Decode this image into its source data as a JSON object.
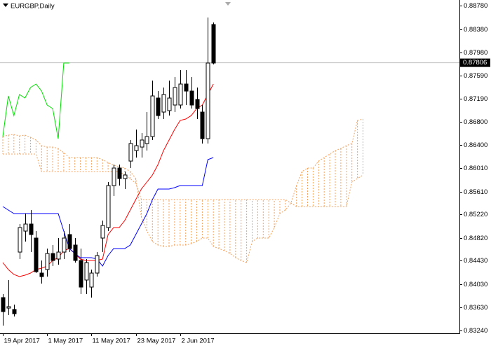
{
  "chart_data": {
    "type": "candlestick",
    "title": "EURGBP,Daily",
    "categories": [
      "19 Apr 2017",
      null,
      null,
      null,
      null,
      null,
      null,
      null,
      "1 May 2017",
      null,
      null,
      null,
      null,
      null,
      null,
      null,
      "11 May 2017",
      null,
      null,
      null,
      null,
      null,
      null,
      null,
      "23 May 2017",
      null,
      null,
      null,
      null,
      null,
      null,
      null,
      "2 Jun 2017",
      null,
      null,
      null,
      null,
      null,
      null,
      null,
      null,
      null,
      null,
      null,
      null,
      null,
      null,
      null,
      null,
      null,
      null,
      null,
      null,
      null,
      null,
      null,
      null,
      null,
      null,
      null,
      null,
      null,
      null,
      null,
      null,
      null
    ],
    "open": [
      0.83801,
      0.83622,
      0.83598,
      0.84577,
      0.84935,
      0.85055,
      0.84816,
      0.84219,
      0.84279,
      0.84553,
      0.84458,
      0.84577,
      0.84876,
      0.84697,
      0.84434,
      0.841,
      0.8398,
      0.84219,
      0.84816,
      0.84995,
      0.85711,
      0.8601,
      0.85831,
      0.86129,
      0.86308,
      0.86368,
      0.86428,
      0.86547,
      0.87204,
      0.86965,
      0.86989,
      0.87085,
      0.87085,
      0.87443,
      0.87323,
      0.8718,
      0.86965,
      0.86511,
      0.88458,
      null,
      null,
      null,
      null,
      null,
      null,
      null,
      null,
      null,
      null,
      null,
      null,
      null,
      null,
      null,
      null,
      null,
      null,
      null,
      null,
      null,
      null,
      null,
      null,
      null,
      null,
      null
    ],
    "high": [
      0.83861,
      0.841,
      0.83682,
      0.85055,
      0.85234,
      0.85294,
      0.84935,
      0.84434,
      0.84637,
      0.84697,
      0.84816,
      0.84935,
      0.85055,
      0.84816,
      0.84637,
      0.84458,
      0.84279,
      0.84577,
      0.85114,
      0.85771,
      0.8607,
      0.8607,
      0.8595,
      0.86488,
      0.86667,
      0.86607,
      0.86965,
      0.87502,
      0.87323,
      0.87383,
      0.87502,
      0.87562,
      0.87682,
      0.87682,
      0.87562,
      0.87383,
      0.87085,
      0.88577,
      0.88493,
      null,
      null,
      null,
      null,
      null,
      null,
      null,
      null,
      null,
      null,
      null,
      null,
      null,
      null,
      null,
      null,
      null,
      null,
      null,
      null,
      null,
      null,
      null,
      null,
      null,
      null,
      null
    ],
    "low": [
      0.83323,
      0.83503,
      0.83479,
      0.84458,
      0.84756,
      0.84577,
      0.84219,
      0.8404,
      0.84159,
      0.84338,
      0.84362,
      0.84458,
      0.84577,
      0.84398,
      0.83861,
      0.83861,
      0.83801,
      0.84159,
      0.84577,
      0.84935,
      0.85532,
      0.85711,
      0.85652,
      0.8601,
      0.86189,
      0.86189,
      0.86308,
      0.86488,
      0.86846,
      0.86846,
      0.86905,
      0.86965,
      0.87025,
      0.87085,
      0.87025,
      0.86846,
      0.86428,
      0.86428,
      0.87777,
      null,
      null,
      null,
      null,
      null,
      null,
      null,
      null,
      null,
      null,
      null,
      null,
      null,
      null,
      null,
      null,
      null,
      null,
      null,
      null,
      null,
      null,
      null,
      null,
      null,
      null,
      null
    ],
    "close": [
      0.83562,
      0.83646,
      0.83526,
      0.84995,
      0.85055,
      0.84876,
      0.84243,
      0.84159,
      0.84553,
      0.84434,
      0.84577,
      0.84816,
      0.84637,
      0.84434,
      0.8398,
      0.84398,
      0.84219,
      0.84517,
      0.85031,
      0.85711,
      0.8601,
      0.85831,
      0.85891,
      0.86428,
      0.86392,
      0.86488,
      0.86547,
      0.8724,
      0.86905,
      0.87264,
      0.87204,
      0.87383,
      0.87443,
      0.87323,
      0.87085,
      0.87025,
      0.86511,
      0.87801,
      0.87801,
      null,
      null,
      null,
      null,
      null,
      null,
      null,
      null,
      null,
      null,
      null,
      null,
      null,
      null,
      null,
      null,
      null,
      null,
      null,
      null,
      null,
      null,
      null,
      null,
      null,
      null,
      null
    ],
    "series": [
      {
        "color": "#ff0000",
        "values": [
          0.84398,
          0.84279,
          0.84195,
          0.84159,
          0.84183,
          0.84219,
          0.84279,
          0.84302,
          0.84338,
          0.84434,
          0.84482,
          0.84601,
          0.84637,
          0.84553,
          0.84458,
          0.84434,
          0.84434,
          0.84434,
          0.84458,
          0.84876,
          0.84995,
          0.84995,
          0.85114,
          0.85294,
          0.85473,
          0.85652,
          0.85771,
          0.85891,
          0.8607,
          0.86308,
          0.86488,
          0.86667,
          0.86822,
          0.86846,
          0.86905,
          0.87025,
          0.87085,
          0.87264,
          0.87443,
          null,
          null,
          null,
          null,
          null,
          null,
          null,
          null,
          null,
          null,
          null,
          null,
          null,
          null,
          null,
          null,
          null,
          null,
          null,
          null,
          null,
          null,
          null,
          null,
          null,
          null,
          null
        ]
      },
      {
        "color": "#0000ff",
        "values": [
          0.85353,
          0.85294,
          0.85234,
          0.85234,
          0.85234,
          0.85234,
          0.85234,
          0.85234,
          0.85234,
          0.85234,
          0.85234,
          0.84935,
          0.84637,
          0.84553,
          0.84482,
          0.84482,
          0.84482,
          0.84458,
          0.84338,
          0.84517,
          0.84637,
          0.84637,
          0.84637,
          0.84697,
          0.84876,
          0.85055,
          0.85234,
          0.85473,
          0.85652,
          0.85652,
          0.85652,
          0.85676,
          0.85711,
          0.85711,
          0.85711,
          0.85711,
          0.85711,
          0.86153,
          0.86189,
          null,
          null,
          null,
          null,
          null,
          null,
          null,
          null,
          null,
          null,
          null,
          null,
          null,
          null,
          null,
          null,
          null,
          null,
          null,
          null,
          null,
          null,
          null,
          null,
          null,
          null,
          null
        ]
      },
      {
        "color": "#00e000",
        "values": [
          0.86547,
          0.8724,
          0.86905,
          0.87264,
          0.87204,
          0.87383,
          0.87443,
          0.87323,
          0.87085,
          0.87025,
          0.86511,
          0.87801,
          0.87801,
          null,
          null,
          null,
          null,
          null,
          null,
          null,
          null,
          null,
          null,
          null,
          null,
          null,
          null,
          null,
          null,
          null,
          null,
          null,
          null,
          null,
          null,
          null,
          null,
          null,
          null,
          null,
          null,
          null,
          null,
          null,
          null,
          null,
          null,
          null,
          null,
          null,
          null,
          null,
          null,
          null,
          null,
          null,
          null,
          null,
          null,
          null,
          null,
          null,
          null,
          null,
          null,
          null
        ]
      }
    ],
    "cloud": {
      "color": "#f4a460",
      "span_a": [
        0.86547,
        0.86571,
        0.86583,
        0.86559,
        0.86571,
        0.86535,
        0.86488,
        0.86392,
        0.86368,
        0.86368,
        0.86344,
        0.86273,
        0.86189,
        0.86189,
        0.86189,
        0.86189,
        0.86189,
        0.86189,
        0.86153,
        0.86105,
        0.86058,
        0.86034,
        0.8601,
        0.8595,
        0.85831,
        0.85174,
        0.84935,
        0.84756,
        0.84697,
        0.84673,
        0.84673,
        0.84697,
        0.84697,
        0.84697,
        0.8472,
        0.84756,
        0.84816,
        0.84816,
        0.84673,
        0.84637,
        0.84601,
        0.84553,
        0.84482,
        0.84434,
        0.84398,
        0.84756,
        0.84816,
        0.84816,
        0.84816,
        0.84995,
        0.85234,
        0.85294,
        0.85413,
        0.85711,
        0.8595,
        0.8601,
        0.8601,
        0.86129,
        0.86189,
        0.86249,
        0.86308,
        0.86344,
        0.86392,
        0.86428,
        0.86822,
        0.86846
      ],
      "span_b": [
        0.86249,
        0.86249,
        0.86249,
        0.86249,
        0.86249,
        0.86249,
        0.86249,
        0.8595,
        0.8595,
        0.8595,
        0.8595,
        0.8595,
        0.8595,
        0.8595,
        0.8595,
        0.8595,
        0.8595,
        0.8595,
        0.8595,
        0.8595,
        0.8595,
        0.8595,
        0.85891,
        0.85831,
        0.85747,
        0.85473,
        0.85473,
        0.85473,
        0.85473,
        0.85473,
        0.85473,
        0.85473,
        0.85473,
        0.85473,
        0.85473,
        0.85473,
        0.85473,
        0.85473,
        0.85473,
        0.85473,
        0.85473,
        0.85473,
        0.85473,
        0.85473,
        0.85473,
        0.85473,
        0.85473,
        0.85473,
        0.85473,
        0.85473,
        0.85473,
        0.85473,
        0.85413,
        0.85353,
        0.85353,
        0.85353,
        0.85353,
        0.85353,
        0.85353,
        0.85353,
        0.85353,
        0.85353,
        0.85353,
        0.85771,
        0.85831,
        0.85891
      ]
    },
    "current_price": 0.87806,
    "ylim": [
      0.83192,
      0.88876
    ],
    "yticks": [
      {
        "value": 0.8878,
        "label": "0.88780"
      },
      {
        "value": 0.8838,
        "label": "0.88380"
      },
      {
        "value": 0.8798,
        "label": "0.87980"
      },
      {
        "value": 0.8759,
        "label": "0.87590"
      },
      {
        "value": 0.8719,
        "label": "0.87190"
      },
      {
        "value": 0.868,
        "label": "0.86800"
      },
      {
        "value": 0.864,
        "label": "0.86400"
      },
      {
        "value": 0.8601,
        "label": "0.86010"
      },
      {
        "value": 0.8561,
        "label": "0.85610"
      },
      {
        "value": 0.8522,
        "label": "0.85220"
      },
      {
        "value": 0.8482,
        "label": "0.84820"
      },
      {
        "value": 0.8443,
        "label": "0.84430"
      },
      {
        "value": 0.8403,
        "label": "0.84030"
      },
      {
        "value": 0.8363,
        "label": "0.83630"
      },
      {
        "value": 0.8324,
        "label": "0.83240"
      }
    ]
  }
}
